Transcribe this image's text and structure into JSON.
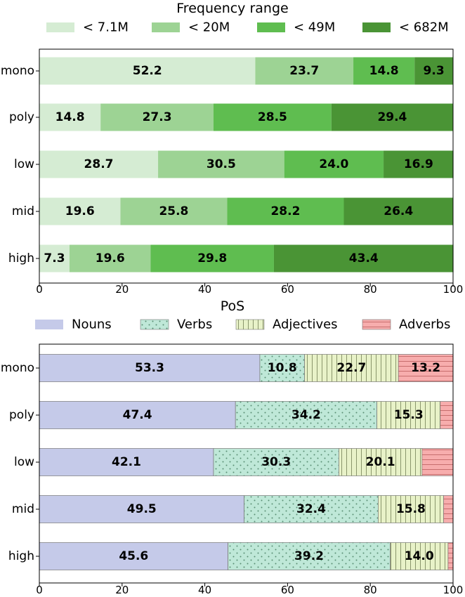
{
  "chart_data": [
    {
      "type": "bar",
      "orientation": "horizontal",
      "stacked": true,
      "legend_title": "Frequency range",
      "legend_position": "top",
      "categories": [
        "mono",
        "poly",
        "low",
        "mid",
        "high"
      ],
      "xlim": [
        0,
        100
      ],
      "xticks": [
        "0",
        "20",
        "40",
        "60",
        "80",
        "100"
      ],
      "series": [
        {
          "name": "< 7.1M",
          "color": "#d5ecd3",
          "hatch": "none",
          "values": [
            52.2,
            14.8,
            28.7,
            19.6,
            7.3
          ],
          "labels": [
            "52.2",
            "14.8",
            "28.7",
            "19.6",
            "7.3"
          ]
        },
        {
          "name": "< 20M",
          "color": "#9dd394",
          "hatch": "none",
          "values": [
            23.7,
            27.3,
            30.5,
            25.8,
            19.6
          ],
          "labels": [
            "23.7",
            "27.3",
            "30.5",
            "25.8",
            "19.6"
          ]
        },
        {
          "name": "< 49M",
          "color": "#5fbd50",
          "hatch": "none",
          "values": [
            14.8,
            28.5,
            24.0,
            28.2,
            29.8
          ],
          "labels": [
            "14.8",
            "28.5",
            "24.0",
            "28.2",
            "29.8"
          ]
        },
        {
          "name": "< 682M",
          "color": "#4a9435",
          "hatch": "none",
          "values": [
            9.3,
            29.4,
            16.9,
            26.4,
            43.4
          ],
          "labels": [
            "9.3",
            "29.4",
            "16.9",
            "26.4",
            "43.4"
          ]
        }
      ]
    },
    {
      "type": "bar",
      "orientation": "horizontal",
      "stacked": true,
      "legend_title": "PoS",
      "legend_position": "top",
      "categories": [
        "mono",
        "poly",
        "low",
        "mid",
        "high"
      ],
      "xlim": [
        0,
        100
      ],
      "xticks": [
        "0",
        "20",
        "40",
        "60",
        "80",
        "100"
      ],
      "series": [
        {
          "name": "Nouns",
          "color": "#c5cae9",
          "hatch": "none",
          "values": [
            53.3,
            47.4,
            42.1,
            49.5,
            45.6
          ],
          "labels": [
            "53.3",
            "47.4",
            "42.1",
            "49.5",
            "45.6"
          ]
        },
        {
          "name": "Verbs",
          "color": "#bfe8d8",
          "hatch": "dots",
          "values": [
            10.8,
            34.2,
            30.3,
            32.4,
            39.2
          ],
          "labels": [
            "10.8",
            "34.2",
            "30.3",
            "32.4",
            "39.2"
          ]
        },
        {
          "name": "Adjectives",
          "color": "#e8f2c8",
          "hatch": "vlines",
          "values": [
            22.7,
            15.3,
            20.1,
            15.8,
            14.0
          ],
          "labels": [
            "22.7",
            "15.3",
            "20.1",
            "15.8",
            "14.0"
          ]
        },
        {
          "name": "Adverbs",
          "color": "#f7adad",
          "hatch": "hlines",
          "values": [
            13.2,
            3.1,
            7.5,
            2.3,
            1.2
          ],
          "labels": [
            "13.2",
            "",
            "",
            "",
            ""
          ]
        }
      ]
    }
  ]
}
